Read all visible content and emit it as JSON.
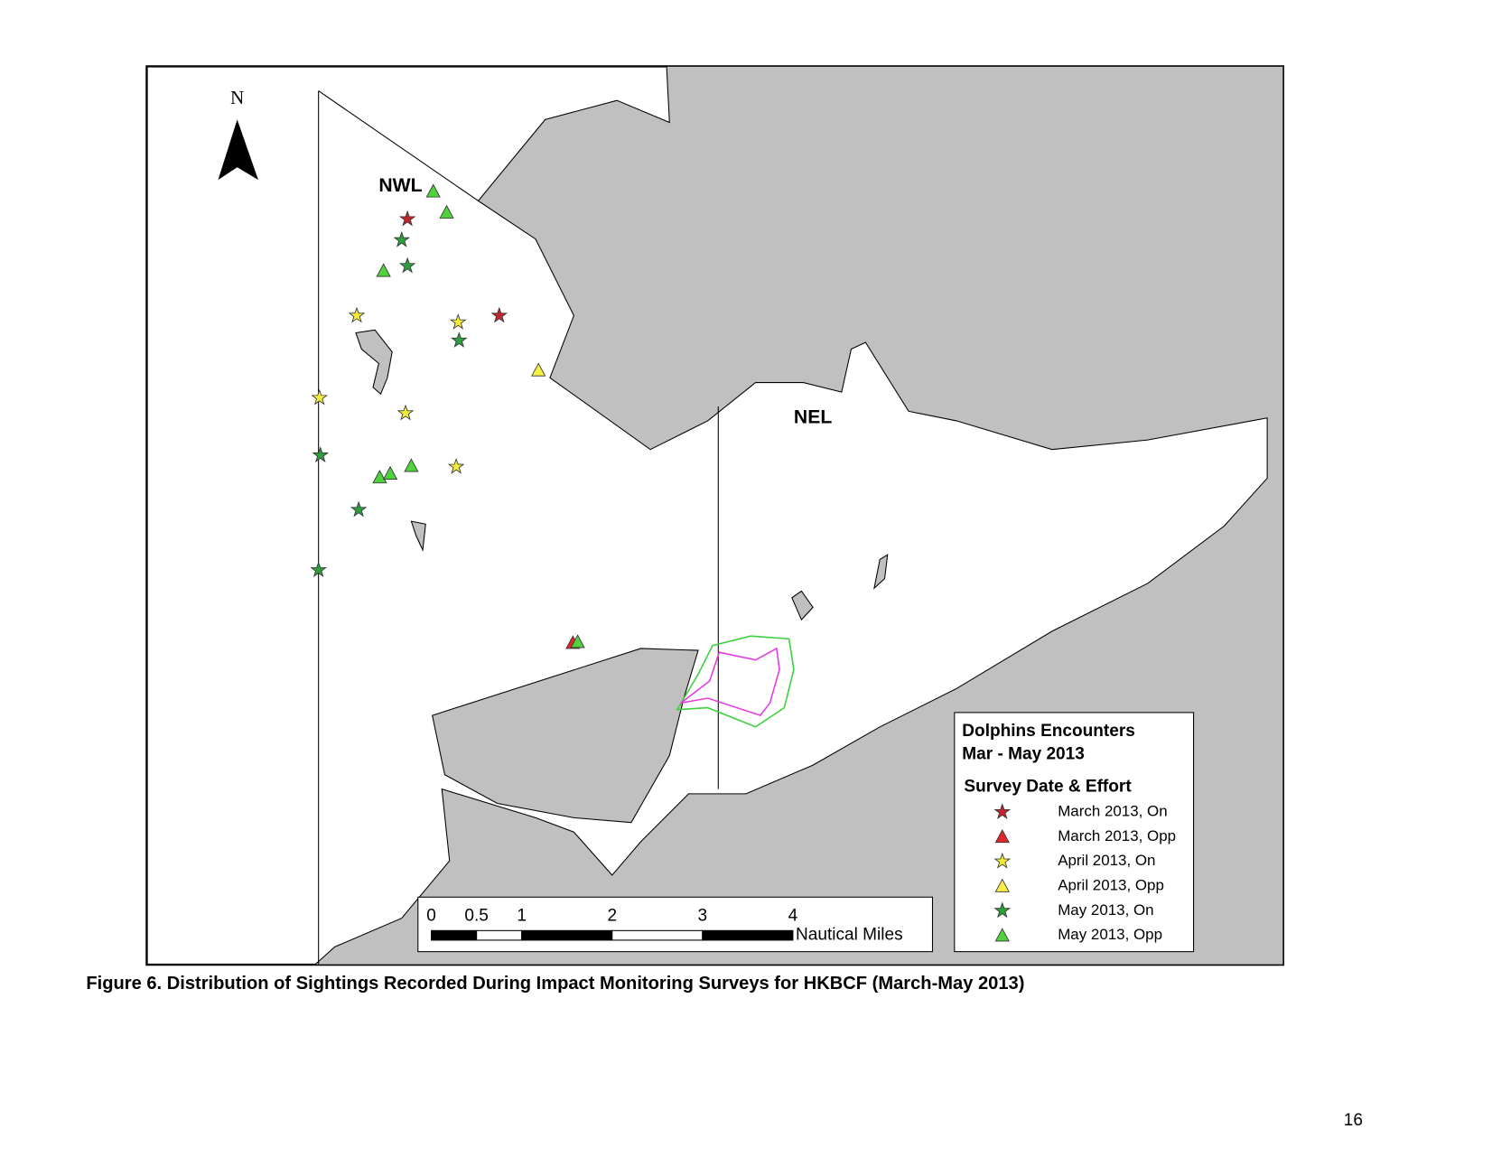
{
  "map": {
    "labels": {
      "north": "N",
      "west_zone": "NWL",
      "east_zone": "NEL"
    },
    "legend": {
      "title_lines": [
        "Dolphins Encounters",
        "Mar - May 2013"
      ],
      "subtitle": "Survey Date & Effort",
      "items": [
        {
          "label": "March 2013, On",
          "shape": "star",
          "color": "#c1272d"
        },
        {
          "label": "March 2013, Opp",
          "shape": "triangle",
          "color": "#e0262a"
        },
        {
          "label": "April 2013, On",
          "shape": "star",
          "color": "#f3ec3c"
        },
        {
          "label": "April 2013, Opp",
          "shape": "triangle",
          "color": "#f7ef45"
        },
        {
          "label": "May 2013, On",
          "shape": "star",
          "color": "#2f9e3c"
        },
        {
          "label": "May 2013, Opp",
          "shape": "triangle",
          "color": "#4fd23d"
        }
      ]
    },
    "scale": {
      "ticks": [
        0,
        0.5,
        1,
        2,
        3,
        4
      ],
      "unit": "Nautical Miles"
    }
  },
  "caption": "Figure 6. Distribution of Sightings Recorded During Impact Monitoring Surveys for HKBCF (March-May 2013)",
  "page_number": "16"
}
